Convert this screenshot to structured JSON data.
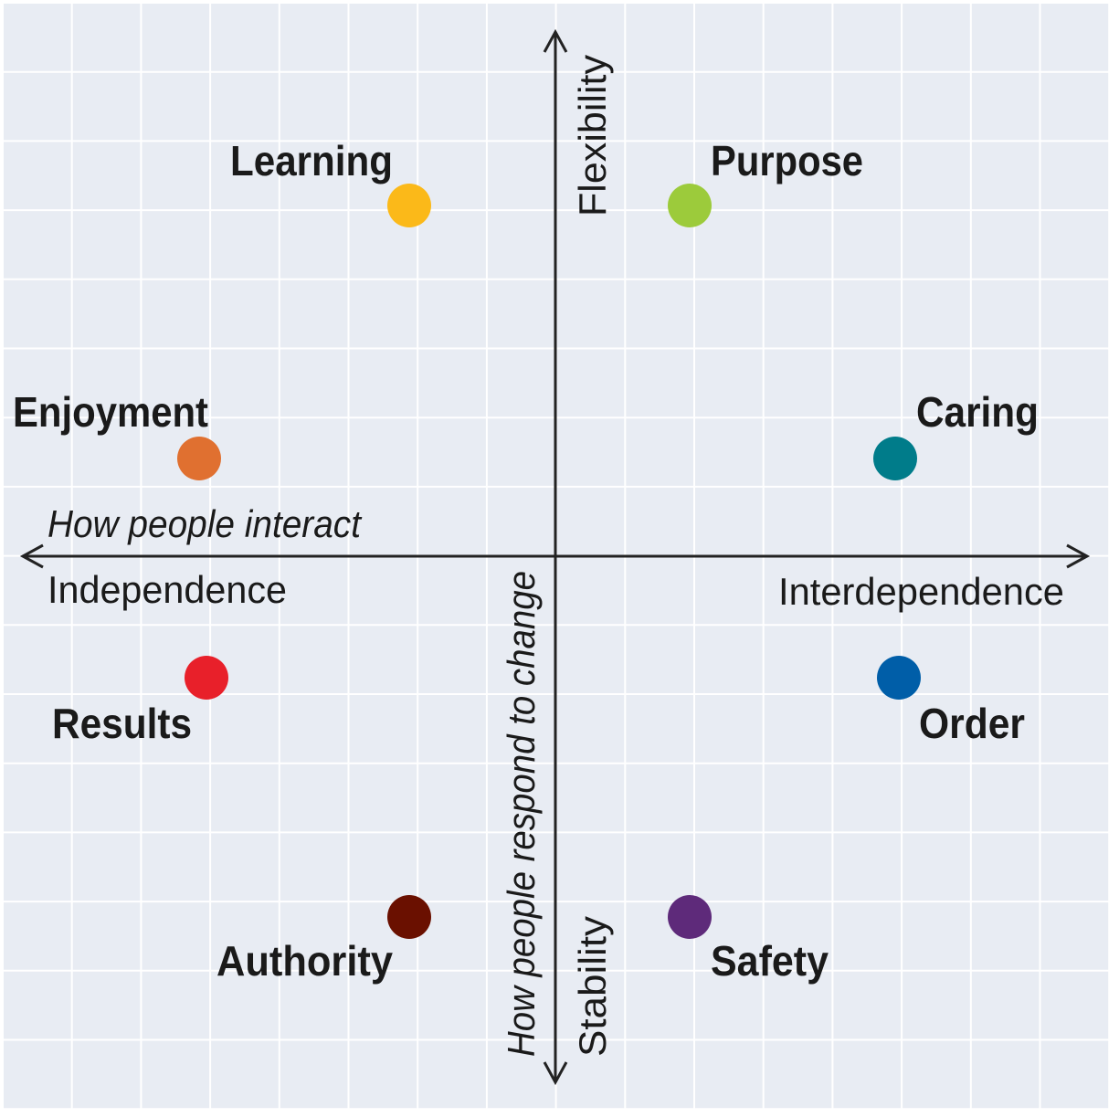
{
  "diagram": {
    "horizontal_axis": {
      "title": "How people interact",
      "left_label": "Independence",
      "right_label": "Interdependence"
    },
    "vertical_axis": {
      "title": "How people respond to change",
      "top_label": "Flexibility",
      "bottom_label": "Stability"
    },
    "styles": [
      {
        "label": "Learning",
        "color": "#fbb919"
      },
      {
        "label": "Purpose",
        "color": "#9ccb3b"
      },
      {
        "label": "Enjoyment",
        "color": "#e07030"
      },
      {
        "label": "Caring",
        "color": "#007c8a"
      },
      {
        "label": "Results",
        "color": "#e8202a"
      },
      {
        "label": "Order",
        "color": "#005ea8"
      },
      {
        "label": "Authority",
        "color": "#6a1000"
      },
      {
        "label": "Safety",
        "color": "#5e2a7a"
      }
    ],
    "background_color": "#e8ecf3",
    "grid_color": "#ffffff",
    "axis_color": "#222222"
  }
}
